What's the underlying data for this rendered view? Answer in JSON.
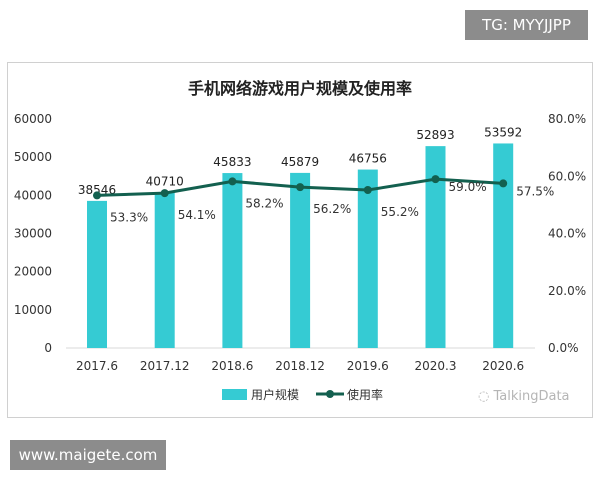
{
  "watermarks": {
    "top": "TG: MYYJJPP",
    "bottom": "www.maigete.com"
  },
  "logo": "TalkingData",
  "chart_data": {
    "type": "bar+line",
    "title": "手机网络游戏用户规模及使用率",
    "categories": [
      "2017.6",
      "2017.12",
      "2018.6",
      "2018.12",
      "2019.6",
      "2020.3",
      "2020.6"
    ],
    "series": [
      {
        "name": "用户规模",
        "type": "bar",
        "axis": "left",
        "color": "#35cbd3",
        "values": [
          38546,
          40710,
          45833,
          45879,
          46756,
          52893,
          53592
        ],
        "labels": [
          "38546",
          "40710",
          "45833",
          "45879",
          "46756",
          "52893",
          "53592"
        ]
      },
      {
        "name": "使用率",
        "type": "line",
        "axis": "right",
        "color": "#13604f",
        "values": [
          53.3,
          54.1,
          58.2,
          56.2,
          55.2,
          59.0,
          57.5
        ],
        "labels": [
          "53.3%",
          "54.1%",
          "58.2%",
          "56.2%",
          "55.2%",
          "59.0%",
          "57.5%"
        ]
      }
    ],
    "yleft": {
      "range": [
        0,
        60000
      ],
      "ticks": [
        "0",
        "10000",
        "20000",
        "30000",
        "40000",
        "50000",
        "60000"
      ]
    },
    "yright": {
      "range": [
        0,
        80
      ],
      "ticks": [
        "0.0%",
        "20.0%",
        "40.0%",
        "60.0%",
        "80.0%"
      ]
    },
    "grid": false,
    "legend": "bottom"
  }
}
